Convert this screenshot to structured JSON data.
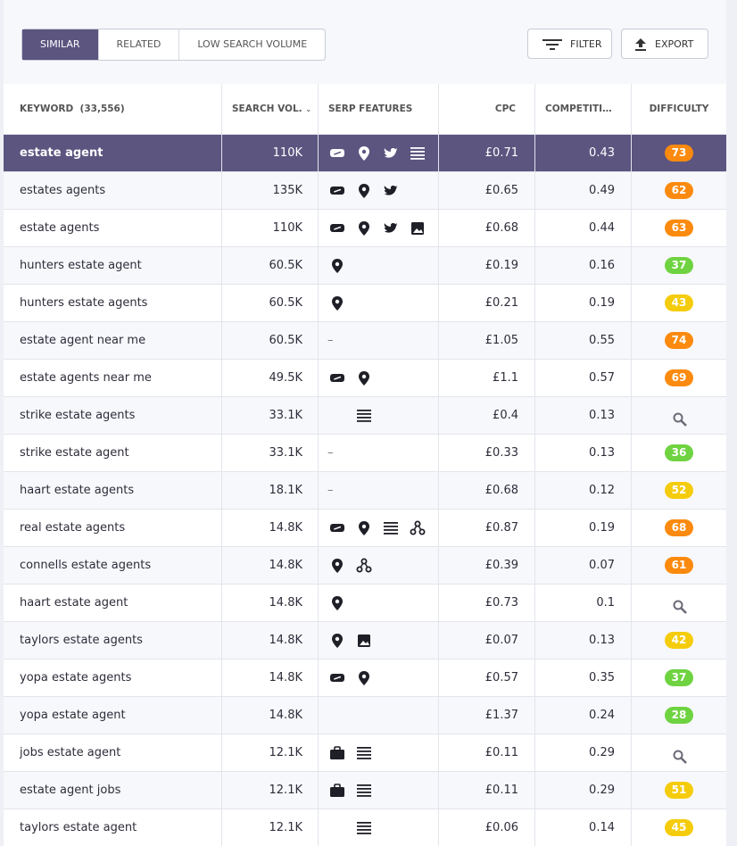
{
  "tabs": [
    "SIMILAR",
    "RELATED",
    "LOW SEARCH VOLUME"
  ],
  "buttons": {
    "filter": "FILTER",
    "export": "EXPORT"
  },
  "table": {
    "headers": {
      "keyword": "KEYWORD",
      "count": "(33,556)",
      "volume": "SEARCH VOL.",
      "serp": "SERP FEATURES",
      "cpc": "CPC",
      "competition": "COMPETITI…",
      "difficulty": "DIFFICULTY"
    },
    "rows": [
      {
        "keyword": "estate agent",
        "volume": "110K",
        "cpc": "£0.71",
        "competition": "0.43",
        "difficulty": 73
      },
      {
        "keyword": "estates agents",
        "volume": "135K",
        "cpc": "£0.65",
        "competition": "0.49",
        "difficulty": 62
      },
      {
        "keyword": "estate agents",
        "volume": "110K",
        "cpc": "£0.68",
        "competition": "0.44",
        "difficulty": 63
      },
      {
        "keyword": "hunters estate agent",
        "volume": "60.5K",
        "cpc": "£0.19",
        "competition": "0.16",
        "difficulty": 37
      },
      {
        "keyword": "hunters estate agents",
        "volume": "60.5K",
        "cpc": "£0.21",
        "competition": "0.19",
        "difficulty": 43
      },
      {
        "keyword": "estate agent near me",
        "volume": "60.5K",
        "serp": "–",
        "cpc": "£1.05",
        "competition": "0.55",
        "difficulty": 74
      },
      {
        "keyword": "estate agents near me",
        "volume": "49.5K",
        "cpc": "£1.1",
        "competition": "0.57",
        "difficulty": 69
      },
      {
        "keyword": "strike estate agents",
        "volume": "33.1K",
        "cpc": "£0.4",
        "competition": "0.13",
        "difficulty": null
      },
      {
        "keyword": "strike estate agent",
        "volume": "33.1K",
        "serp": "–",
        "cpc": "£0.33",
        "competition": "0.13",
        "difficulty": 36
      },
      {
        "keyword": "haart estate agents",
        "volume": "18.1K",
        "serp": "–",
        "cpc": "£0.68",
        "competition": "0.12",
        "difficulty": 52
      },
      {
        "keyword": "real estate agents",
        "volume": "14.8K",
        "cpc": "£0.87",
        "competition": "0.19",
        "difficulty": 68
      },
      {
        "keyword": "connells estate agents",
        "volume": "14.8K",
        "cpc": "£0.39",
        "competition": "0.07",
        "difficulty": 61
      },
      {
        "keyword": "haart estate agent",
        "volume": "14.8K",
        "cpc": "£0.73",
        "competition": "0.1",
        "difficulty": null
      },
      {
        "keyword": "taylors estate agents",
        "volume": "14.8K",
        "cpc": "£0.07",
        "competition": "0.13",
        "difficulty": 42
      },
      {
        "keyword": "yopa estate agents",
        "volume": "14.8K",
        "cpc": "£0.57",
        "competition": "0.35",
        "difficulty": 37
      },
      {
        "keyword": "yopa estate agent",
        "volume": "14.8K",
        "cpc": "£1.37",
        "competition": "0.24",
        "difficulty": 28
      },
      {
        "keyword": "jobs estate agent",
        "volume": "12.1K",
        "cpc": "£0.11",
        "competition": "0.29",
        "difficulty": null
      },
      {
        "keyword": "estate agent jobs",
        "volume": "12.1K",
        "cpc": "£0.11",
        "competition": "0.29",
        "difficulty": 51
      },
      {
        "keyword": "taylors estate agent",
        "volume": "12.1K",
        "cpc": "£0.06",
        "competition": "0.14",
        "difficulty": 45
      }
    ]
  }
}
